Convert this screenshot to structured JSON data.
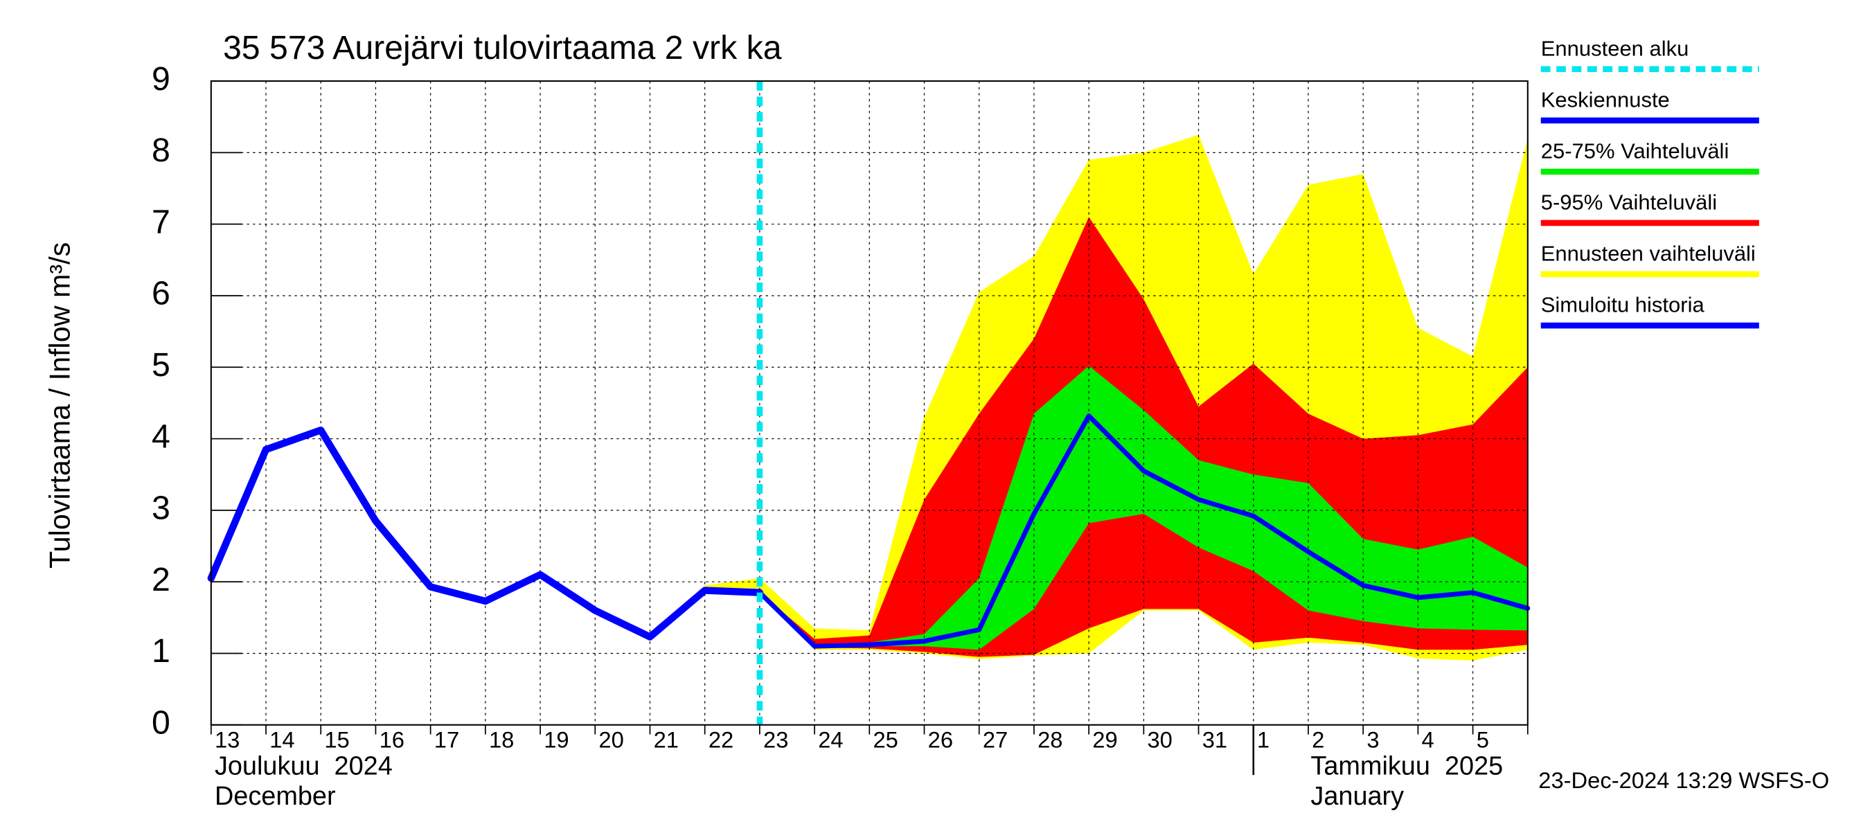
{
  "chart_data": {
    "type": "band-forecast",
    "title": "35 573 Aurejärvi tulovirtaama 2 vrk ka",
    "ylabel": "Tulovirtaama / Inflow    m³/s",
    "categories": [
      "13",
      "14",
      "15",
      "16",
      "17",
      "18",
      "19",
      "20",
      "21",
      "22",
      "23",
      "24",
      "25",
      "26",
      "27",
      "28",
      "29",
      "30",
      "31",
      "1",
      "2",
      "3",
      "4",
      "5",
      null
    ],
    "months": [
      {
        "name": "Joulukuu  2024",
        "name_en": "December",
        "start_category": "13"
      },
      {
        "name": "Tammikuu  2025",
        "name_en": "January",
        "start_category": "1"
      }
    ],
    "ylim": [
      0,
      9
    ],
    "yticks": [
      0,
      1,
      2,
      3,
      4,
      5,
      6,
      7,
      8,
      9
    ],
    "grid": true,
    "forecast_start": {
      "label": "Ennusteen alku",
      "category": "23",
      "color": "#00e5ee"
    },
    "series": [
      {
        "name": "Keskiennuste",
        "kind": "line",
        "color": "#0000ff",
        "values": [
          null,
          null,
          null,
          null,
          null,
          null,
          null,
          null,
          null,
          null,
          1.85,
          1.1,
          1.12,
          1.17,
          1.33,
          2.95,
          4.32,
          3.55,
          3.15,
          2.92,
          2.42,
          1.95,
          1.78,
          1.85,
          1.63
        ]
      },
      {
        "name": "25-75% Vaihteluväli",
        "kind": "band",
        "color": "#00ee00",
        "upper": [
          null,
          null,
          null,
          null,
          null,
          null,
          null,
          null,
          null,
          null,
          1.85,
          1.12,
          1.15,
          1.27,
          2.05,
          4.35,
          5.02,
          4.4,
          3.7,
          3.5,
          3.38,
          2.6,
          2.45,
          2.63,
          2.2
        ],
        "lower": [
          null,
          null,
          null,
          null,
          null,
          null,
          null,
          null,
          null,
          null,
          1.85,
          1.08,
          1.1,
          1.1,
          1.05,
          1.62,
          2.82,
          2.95,
          2.48,
          2.15,
          1.6,
          1.45,
          1.35,
          1.33,
          1.32
        ]
      },
      {
        "name": "5-95% Vaihteluväli",
        "kind": "band",
        "color": "#ff0000",
        "upper": [
          null,
          null,
          null,
          null,
          null,
          null,
          null,
          null,
          null,
          null,
          1.85,
          1.2,
          1.25,
          3.15,
          4.35,
          5.4,
          7.1,
          5.95,
          4.45,
          5.05,
          4.35,
          4.0,
          4.05,
          4.2,
          5.0
        ],
        "lower": [
          null,
          null,
          null,
          null,
          null,
          null,
          null,
          null,
          null,
          null,
          1.85,
          1.08,
          1.07,
          1.02,
          0.95,
          0.98,
          1.35,
          1.62,
          1.62,
          1.15,
          1.22,
          1.15,
          1.05,
          1.05,
          1.12
        ]
      },
      {
        "name": "Ennusteen vaihteluväli",
        "kind": "band",
        "color": "#ffff00",
        "upper": [
          null,
          null,
          null,
          null,
          null,
          null,
          null,
          null,
          null,
          1.95,
          2.05,
          1.35,
          1.32,
          4.3,
          6.05,
          6.55,
          7.9,
          8.0,
          8.25,
          6.3,
          7.55,
          7.7,
          5.55,
          5.15,
          8.2
        ],
        "lower": [
          null,
          null,
          null,
          null,
          null,
          null,
          null,
          null,
          null,
          1.88,
          1.85,
          1.05,
          1.05,
          1.0,
          0.92,
          0.97,
          1.0,
          1.6,
          1.6,
          1.05,
          1.15,
          1.12,
          0.93,
          0.9,
          1.05
        ]
      },
      {
        "name": "Simuloitu historia",
        "kind": "line",
        "color": "#0000ff",
        "width": 6,
        "values": [
          2.05,
          3.85,
          4.12,
          2.85,
          1.93,
          1.73,
          2.1,
          1.6,
          1.23,
          1.88,
          1.85,
          null,
          null,
          null,
          null,
          null,
          null,
          null,
          null,
          null,
          null,
          null,
          null,
          null,
          null
        ]
      }
    ],
    "footer": "23-Dec-2024 13:29 WSFS-O"
  }
}
